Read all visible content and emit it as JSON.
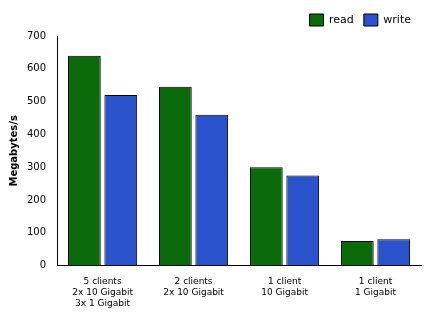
{
  "chart_data": {
    "type": "bar",
    "y_label": "Megabytes/s",
    "categories": [
      [
        "5 clients",
        "2x 10 Gigabit",
        "3x 1 Gigabit"
      ],
      [
        "2 clients",
        "2x 10 Gigabit"
      ],
      [
        "1 client",
        "10 Gigabit"
      ],
      [
        "1 client",
        "1 Gigabit"
      ]
    ],
    "series": [
      {
        "name": "read",
        "color": "#0b6b0b",
        "values": [
          640,
          545,
          300,
          75
        ]
      },
      {
        "name": "write",
        "color": "#2a52cc",
        "values": [
          520,
          460,
          275,
          80
        ]
      }
    ],
    "ylim": [
      0,
      700
    ],
    "yticks": [
      0,
      100,
      200,
      300,
      400,
      500,
      600,
      700
    ],
    "grid": false,
    "legend": "top-right"
  }
}
